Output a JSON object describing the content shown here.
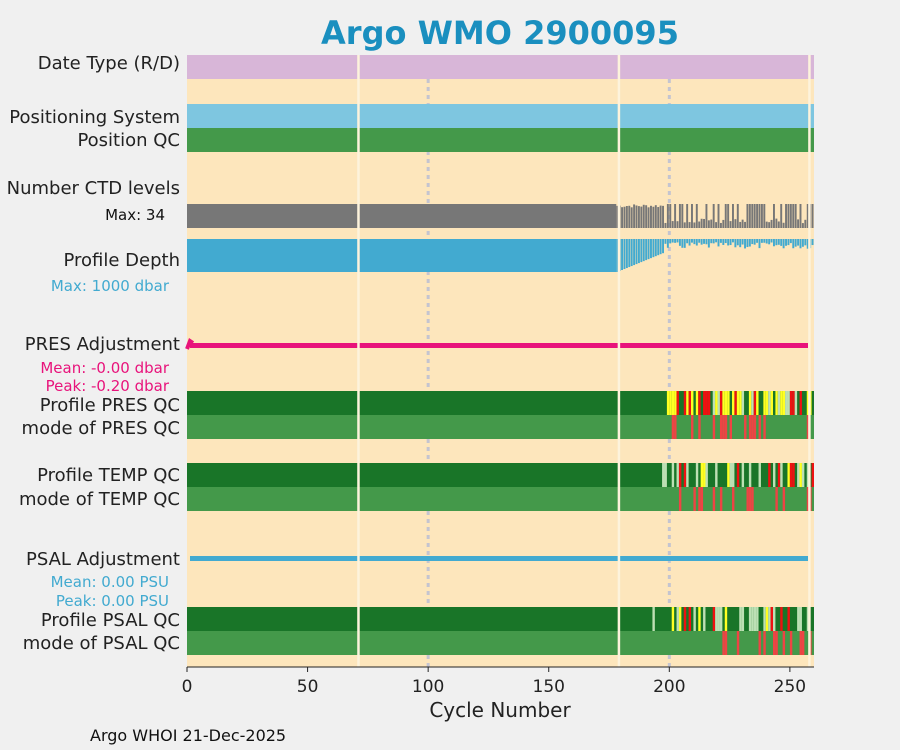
{
  "chart_data": {
    "type": "heatmap",
    "title": "Argo WMO 2900095",
    "xlabel": "Cycle Number",
    "xlim": [
      0,
      260
    ],
    "xticks": [
      0,
      50,
      100,
      150,
      200,
      250
    ],
    "footer": "Argo WHOI 21-Dec-2025",
    "gridlines_x": [
      100,
      200
    ],
    "cycle_gaps": [
      71,
      179,
      258
    ],
    "rows": [
      {
        "label": "Date Type (R/D)",
        "kind": "band",
        "color": "#d8b6d8"
      },
      {
        "label": "Positioning System",
        "kind": "band",
        "color": "#7ec6e0"
      },
      {
        "label": "Position QC",
        "kind": "band",
        "color": "#44994a"
      },
      {
        "label": "Number CTD levels",
        "kind": "bars",
        "color": "#777777",
        "note": "Max: 34",
        "max": 34,
        "full_until": 178
      },
      {
        "label": "Profile Depth",
        "kind": "bars_down",
        "color": "#42aad0",
        "note": "Max: 1000 dbar",
        "max": 1000,
        "full_until": 178
      },
      {
        "label": "PRES Adjustment",
        "kind": "line",
        "color": "#e8137b",
        "mean": "Mean: -0.00 dbar",
        "peak": "Peak: -0.20 dbar"
      },
      {
        "label": "Profile PRES QC",
        "kind": "qc",
        "profile": true
      },
      {
        "label": "mode of PRES QC",
        "kind": "qc",
        "profile": false
      },
      {
        "label": "Profile TEMP QC",
        "kind": "qc",
        "profile": true
      },
      {
        "label": "mode of TEMP QC",
        "kind": "qc",
        "profile": false
      },
      {
        "label": "PSAL Adjustment",
        "kind": "line",
        "color": "#42aad0",
        "mean": "Mean: 0.00 PSU",
        "peak": "Peak: 0.00 PSU"
      },
      {
        "label": "Profile PSAL QC",
        "kind": "qc",
        "profile": true
      },
      {
        "label": "mode of PSAL QC",
        "kind": "qc",
        "profile": false
      }
    ],
    "qc_colors": {
      "good_profile": "#197528",
      "good_mode": "#44994a",
      "light": "#bde0b4",
      "yellow": "#ffff22",
      "red": "#ee1111",
      "light_red": "#ee4444"
    },
    "colors": {
      "background": "#fde6bc",
      "title": "#1a8fbf",
      "note_gray": "#111111"
    }
  }
}
